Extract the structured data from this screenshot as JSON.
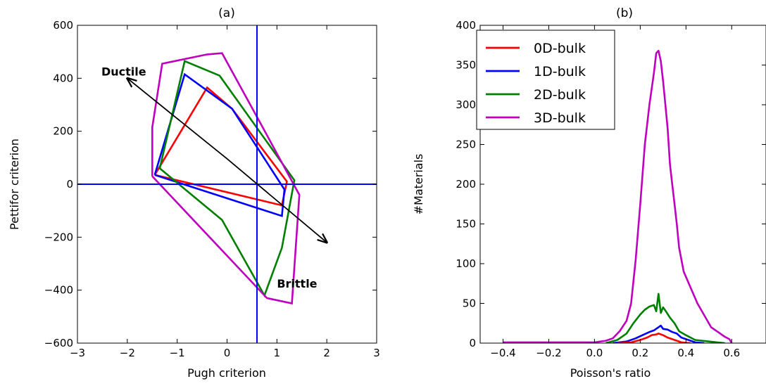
{
  "chart_data": [
    {
      "type": "line",
      "title": "(a)",
      "xlabel": "Pugh criterion",
      "ylabel": "Pettifor criterion",
      "xlim": [
        -3,
        3
      ],
      "ylim": [
        -600,
        600
      ],
      "xticks": [
        -3,
        -2,
        -1,
        0,
        1,
        2,
        3
      ],
      "xtick_labels": [
        "−3",
        "−2",
        "−1",
        "0",
        "1",
        "2",
        "3"
      ],
      "yticks": [
        -600,
        -400,
        -200,
        0,
        200,
        400,
        600
      ],
      "ytick_labels": [
        "−600",
        "−400",
        "−200",
        "0",
        "200",
        "400",
        "600"
      ],
      "grid": false,
      "reference_lines": {
        "x": 0.6,
        "y": 0,
        "color": "#0000ff"
      },
      "series": [
        {
          "color": "#ff0000",
          "points": [
            [
              -1.45,
              35
            ],
            [
              -0.4,
              365
            ],
            [
              0.1,
              285
            ],
            [
              1.2,
              10
            ],
            [
              1.1,
              -80
            ],
            [
              -1.45,
              35
            ]
          ]
        },
        {
          "color": "#0000ff",
          "points": [
            [
              -1.45,
              35
            ],
            [
              -0.85,
              415
            ],
            [
              0.1,
              285
            ],
            [
              1.15,
              -20
            ],
            [
              1.1,
              -120
            ],
            [
              -1.45,
              35
            ]
          ]
        },
        {
          "color": "#008000",
          "points": [
            [
              -1.35,
              60
            ],
            [
              -0.85,
              465
            ],
            [
              -0.15,
              410
            ],
            [
              1.35,
              15
            ],
            [
              1.1,
              -240
            ],
            [
              0.75,
              -420
            ],
            [
              -0.1,
              -135
            ],
            [
              -1.35,
              60
            ]
          ]
        },
        {
          "color": "#bf00bf",
          "points": [
            [
              -1.5,
              30
            ],
            [
              -1.5,
              215
            ],
            [
              -1.3,
              455
            ],
            [
              -0.4,
              490
            ],
            [
              -0.1,
              495
            ],
            [
              0.8,
              185
            ],
            [
              1.45,
              -40
            ],
            [
              1.3,
              -450
            ],
            [
              0.8,
              -430
            ],
            [
              -1.5,
              30
            ]
          ]
        }
      ],
      "arrows": [
        {
          "label": "Ductile",
          "tail": [
            0.0,
            96
          ],
          "head": [
            -2.0,
            400
          ]
        },
        {
          "label": "Brittle",
          "tail": [
            0.0,
            96
          ],
          "head": [
            2.0,
            -220
          ]
        }
      ],
      "annotations": [
        {
          "text": "Ductile",
          "at": [
            -2.52,
            410
          ]
        },
        {
          "text": "Brittle",
          "at": [
            1.0,
            -390
          ]
        }
      ]
    },
    {
      "type": "line",
      "title": "(b)",
      "xlabel": "Poisson's ratio",
      "ylabel": "#Materials",
      "xlim": [
        -0.5,
        0.75
      ],
      "ylim": [
        0,
        400
      ],
      "xticks": [
        -0.4,
        -0.2,
        0.0,
        0.2,
        0.4,
        0.6
      ],
      "xtick_labels": [
        "−0.4",
        "−0.2",
        "0.0",
        "0.2",
        "0.4",
        "0.6"
      ],
      "yticks": [
        0,
        50,
        100,
        150,
        200,
        250,
        300,
        350,
        400
      ],
      "ytick_labels": [
        "0",
        "50",
        "100",
        "150",
        "200",
        "250",
        "300",
        "350",
        "400"
      ],
      "grid": false,
      "legend_position": "top-left",
      "series": [
        {
          "name": "0D-bulk",
          "color": "#ff0000",
          "x": [
            0.1,
            0.16,
            0.2,
            0.23,
            0.25,
            0.27,
            0.28,
            0.3,
            0.32,
            0.35,
            0.38,
            0.42
          ],
          "y": [
            0,
            1,
            4,
            7,
            10,
            11,
            12,
            10,
            7,
            4,
            1,
            0
          ]
        },
        {
          "name": "1D-bulk",
          "color": "#0000ff",
          "x": [
            0.08,
            0.14,
            0.18,
            0.21,
            0.24,
            0.26,
            0.28,
            0.29,
            0.3,
            0.32,
            0.34,
            0.36,
            0.38,
            0.41,
            0.44,
            0.48
          ],
          "y": [
            0,
            2,
            6,
            10,
            14,
            16,
            20,
            22,
            18,
            17,
            14,
            12,
            7,
            4,
            1,
            0
          ]
        },
        {
          "name": "2D-bulk",
          "color": "#008000",
          "x": [
            0.05,
            0.1,
            0.14,
            0.17,
            0.2,
            0.22,
            0.24,
            0.26,
            0.27,
            0.28,
            0.29,
            0.3,
            0.31,
            0.33,
            0.35,
            0.37,
            0.4,
            0.44,
            0.5,
            0.57
          ],
          "y": [
            0,
            4,
            12,
            25,
            36,
            42,
            46,
            48,
            40,
            62,
            38,
            45,
            41,
            32,
            25,
            15,
            10,
            4,
            2,
            0
          ]
        },
        {
          "name": "3D-bulk",
          "color": "#bf00bf",
          "x": [
            -0.4,
            -0.3,
            -0.2,
            -0.1,
            0.0,
            0.05,
            0.08,
            0.11,
            0.14,
            0.16,
            0.18,
            0.2,
            0.22,
            0.24,
            0.25,
            0.26,
            0.27,
            0.28,
            0.29,
            0.3,
            0.31,
            0.32,
            0.33,
            0.34,
            0.35,
            0.36,
            0.37,
            0.39,
            0.42,
            0.45,
            0.48,
            0.51,
            0.54,
            0.57,
            0.59,
            0.6
          ],
          "y": [
            1,
            1,
            1,
            1,
            1,
            3,
            6,
            15,
            28,
            50,
            105,
            175,
            250,
            300,
            320,
            340,
            365,
            368,
            355,
            330,
            300,
            270,
            225,
            200,
            175,
            150,
            120,
            90,
            70,
            50,
            35,
            20,
            14,
            8,
            5,
            0
          ]
        }
      ]
    }
  ]
}
